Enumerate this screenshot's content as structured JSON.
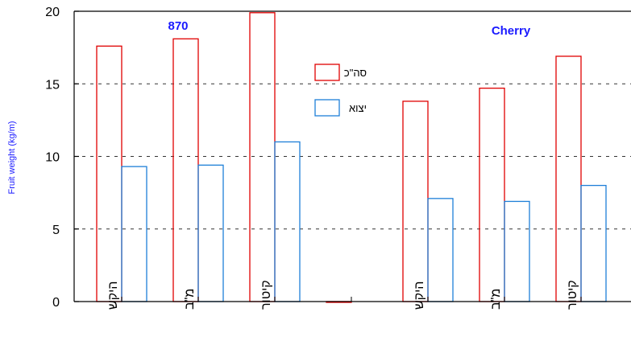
{
  "chart_data": {
    "type": "bar",
    "ylabel": "Fruit weight (kg/m)",
    "ylim": [
      0,
      20
    ],
    "yticks": [
      0,
      5,
      10,
      15,
      20
    ],
    "grid": "horizontal dashed at 15, 10, 5",
    "legend_placement": "top-center",
    "categories": [
      "היקש",
      "מ\"ב",
      "קיטור",
      "",
      "היקש",
      "מ\"ב",
      "קיטור"
    ],
    "series": [
      {
        "name": "סה\"כ",
        "color": "#e00000",
        "values": [
          17.6,
          18.1,
          19.9,
          0,
          13.8,
          14.7,
          16.9
        ]
      },
      {
        "name": "יצוא",
        "color": "#1e7fd8",
        "values": [
          9.3,
          9.4,
          11.0,
          null,
          7.1,
          6.9,
          8.0
        ]
      }
    ],
    "annotations": [
      {
        "text": "870",
        "group": "left"
      },
      {
        "text": "Cherry",
        "group": "right"
      }
    ]
  }
}
